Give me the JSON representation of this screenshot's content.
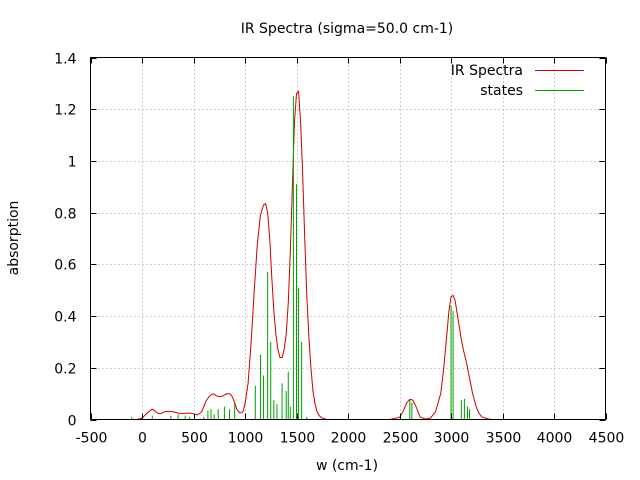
{
  "chart_data": {
    "type": "line",
    "title": "IR Spectra (sigma=50.0 cm-1)",
    "xlabel": "w (cm-1)",
    "ylabel": "absorption",
    "xlim": [
      -500,
      4500
    ],
    "ylim": [
      0,
      1.4
    ],
    "x_ticks": [
      -500,
      0,
      500,
      1000,
      1500,
      2000,
      2500,
      3000,
      3500,
      4000,
      4500
    ],
    "y_ticks": [
      0,
      0.2,
      0.4,
      0.6,
      0.8,
      1,
      1.2,
      1.4
    ],
    "x_tick_labels": [
      "-500",
      "0",
      "500",
      "1000",
      "1500",
      "2000",
      "2500",
      "3000",
      "3500",
      "4000",
      "4500"
    ],
    "y_tick_labels": [
      "0",
      "0.2",
      "0.4",
      "0.6",
      "0.8",
      "1",
      "1.2",
      "1.4"
    ],
    "grid": true,
    "legend_position": "top-right",
    "series": [
      {
        "name": "IR Spectra",
        "style": "line",
        "color": "#cc0000",
        "x": [
          -110,
          -50,
          0,
          50,
          80,
          100,
          120,
          150,
          180,
          220,
          260,
          300,
          340,
          380,
          420,
          460,
          500,
          540,
          580,
          600,
          620,
          650,
          680,
          700,
          720,
          750,
          780,
          800,
          830,
          860,
          880,
          900,
          920,
          950,
          980,
          1000,
          1030,
          1060,
          1090,
          1120,
          1150,
          1180,
          1200,
          1220,
          1240,
          1260,
          1280,
          1300,
          1320,
          1340,
          1360,
          1380,
          1400,
          1420,
          1440,
          1460,
          1480,
          1500,
          1520,
          1540,
          1560,
          1580,
          1600,
          1620,
          1640,
          1660,
          1680,
          1700,
          1720,
          1740,
          1760,
          1780,
          1800,
          2000,
          2200,
          2400,
          2500,
          2540,
          2570,
          2600,
          2630,
          2660,
          2700,
          2750,
          2800,
          2850,
          2900,
          2930,
          2960,
          2980,
          3000,
          3020,
          3040,
          3060,
          3080,
          3100,
          3120,
          3150,
          3180,
          3210,
          3240,
          3270,
          3300,
          3350,
          3400,
          3500,
          3800,
          4000,
          4200
        ],
        "y": [
          0.0,
          0.0,
          0.005,
          0.025,
          0.035,
          0.04,
          0.035,
          0.025,
          0.022,
          0.03,
          0.032,
          0.03,
          0.026,
          0.022,
          0.024,
          0.025,
          0.022,
          0.018,
          0.03,
          0.05,
          0.07,
          0.088,
          0.098,
          0.098,
          0.092,
          0.088,
          0.09,
          0.095,
          0.1,
          0.098,
          0.085,
          0.065,
          0.04,
          0.025,
          0.03,
          0.06,
          0.14,
          0.3,
          0.5,
          0.68,
          0.79,
          0.83,
          0.835,
          0.8,
          0.7,
          0.55,
          0.42,
          0.33,
          0.27,
          0.24,
          0.24,
          0.27,
          0.33,
          0.45,
          0.65,
          0.9,
          1.15,
          1.26,
          1.27,
          1.15,
          0.95,
          0.7,
          0.48,
          0.32,
          0.2,
          0.11,
          0.06,
          0.03,
          0.015,
          0.008,
          0.004,
          0.002,
          0.0,
          0.0,
          0.0,
          0.0,
          0.008,
          0.035,
          0.065,
          0.078,
          0.075,
          0.05,
          0.01,
          0.002,
          0.005,
          0.03,
          0.1,
          0.2,
          0.33,
          0.42,
          0.475,
          0.48,
          0.46,
          0.41,
          0.36,
          0.31,
          0.27,
          0.22,
          0.16,
          0.1,
          0.055,
          0.025,
          0.01,
          0.003,
          0.0,
          0.0,
          0.0,
          0.0,
          0.0
        ]
      },
      {
        "name": "states",
        "style": "impulse",
        "color": "#00a000",
        "x": [
          -100,
          100,
          280,
          350,
          420,
          460,
          600,
          640,
          670,
          700,
          740,
          800,
          850,
          900,
          1100,
          1150,
          1180,
          1220,
          1250,
          1280,
          1310,
          1360,
          1400,
          1420,
          1440,
          1470,
          1500,
          1520,
          1550,
          1600,
          2600,
          2620,
          3000,
          3020,
          3100,
          3130,
          3160,
          3180
        ],
        "y": [
          0.01,
          0.015,
          0.015,
          0.02,
          0.015,
          0.01,
          0.01,
          0.035,
          0.04,
          0.02,
          0.04,
          0.05,
          0.04,
          0.06,
          0.13,
          0.25,
          0.17,
          0.57,
          0.3,
          0.075,
          0.06,
          0.14,
          0.11,
          0.185,
          0.05,
          1.25,
          0.91,
          0.51,
          0.3,
          0.01,
          0.075,
          0.065,
          0.44,
          0.42,
          0.075,
          0.08,
          0.05,
          0.04
        ]
      }
    ]
  }
}
